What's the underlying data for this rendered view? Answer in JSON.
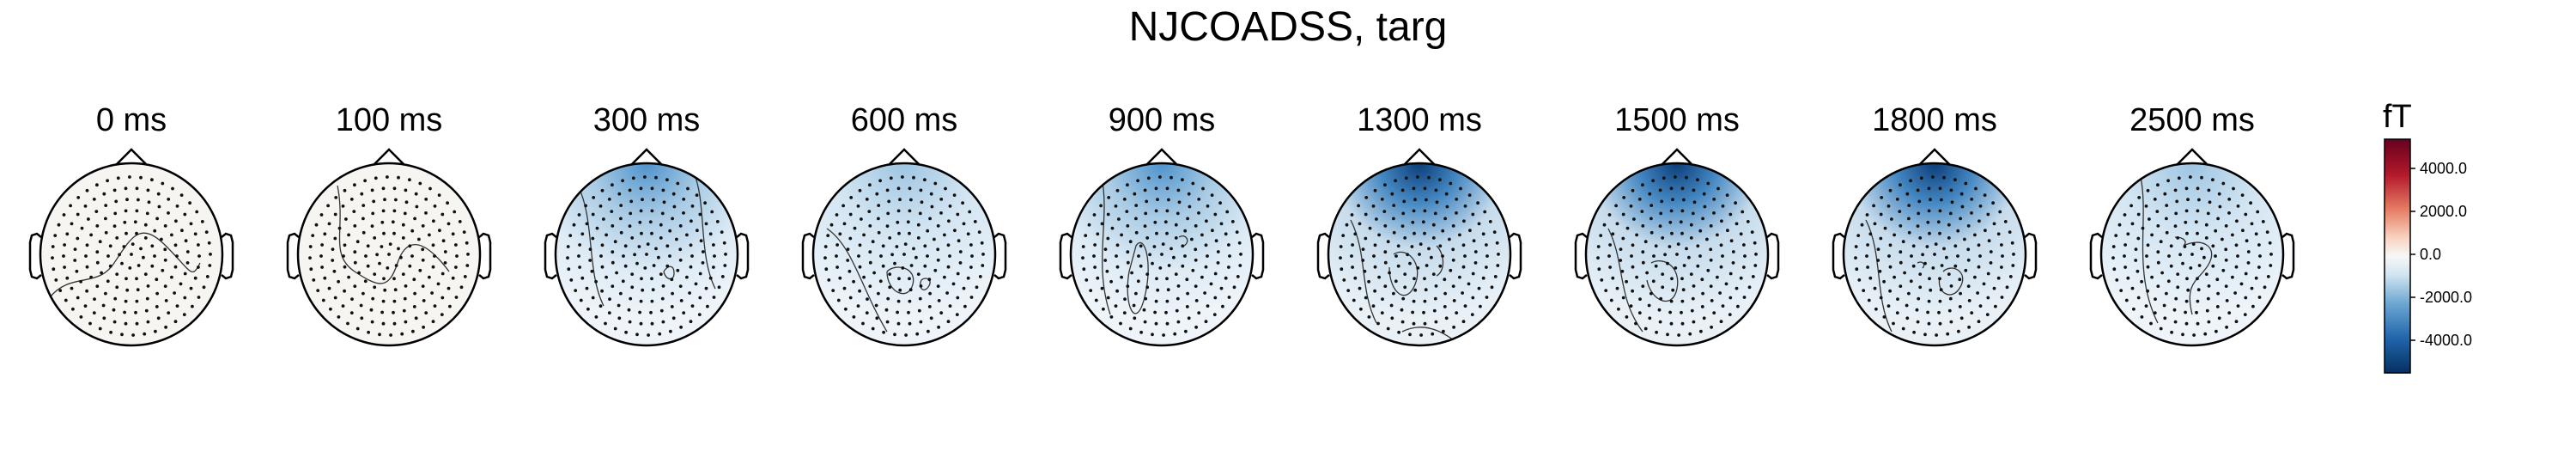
{
  "figure": {
    "title": "NJCOADSS, targ"
  },
  "colors": {
    "strong_blue": "#0b3d78",
    "blue": "#5d9bd1",
    "light_blue": "#dceaf4",
    "neutral": "#f7f4f1",
    "light_red": "#f8d2c0",
    "red": "#cd5a4c",
    "dark_red": "#6b0016"
  },
  "maps": [
    {
      "label": "0 ms"
    },
    {
      "label": "100 ms"
    },
    {
      "label": "300 ms"
    },
    {
      "label": "600 ms"
    },
    {
      "label": "900 ms"
    },
    {
      "label": "1300 ms"
    },
    {
      "label": "1500 ms"
    },
    {
      "label": "1800 ms"
    },
    {
      "label": "2500 ms"
    }
  ],
  "colorbar": {
    "unit": "fT",
    "ticks": [
      "4000.0",
      "2000.0",
      "0.0",
      "-2000.0",
      "-4000.0"
    ]
  }
}
